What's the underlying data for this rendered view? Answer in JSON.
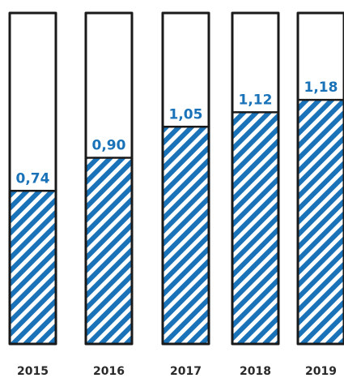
{
  "chart_data": {
    "type": "bar",
    "categories": [
      "2015",
      "2016",
      "2017",
      "2018",
      "2019"
    ],
    "values": [
      0.74,
      0.9,
      1.05,
      1.12,
      1.18
    ],
    "value_labels": [
      "0,74",
      "0,90",
      "1,05",
      "1,12",
      "1,18"
    ],
    "ylim": [
      0,
      1.6
    ],
    "grid": false,
    "legend": "none"
  },
  "colors": {
    "fill": "#1a73b8",
    "value_text": "#1a73b8",
    "outline": "#1a1a1a",
    "label_text": "#2a2a2a"
  }
}
